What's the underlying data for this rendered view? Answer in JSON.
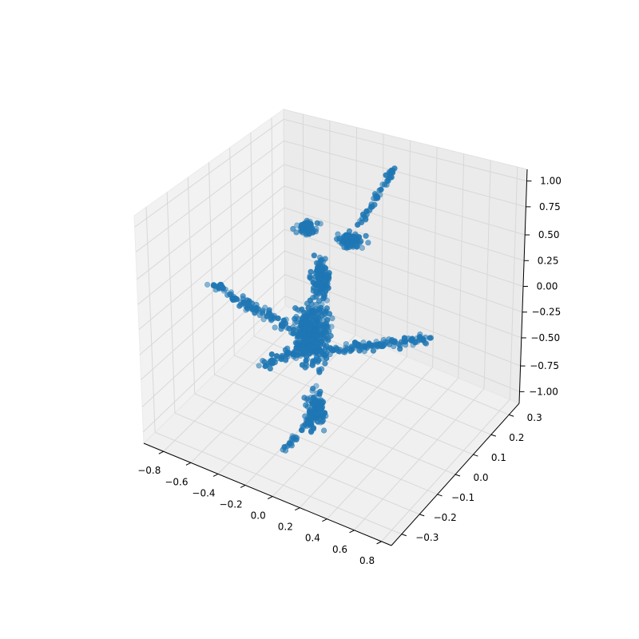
{
  "chart_data": {
    "type": "scatter",
    "projection": "3d",
    "title": "",
    "xlabel": "",
    "ylabel": "",
    "zlabel": "",
    "xlim": [
      -0.9,
      0.85
    ],
    "ylim": [
      -0.34,
      0.34
    ],
    "zlim": [
      -1.08,
      1.08
    ],
    "x_ticks": [
      "−0.8",
      "−0.6",
      "−0.4",
      "−0.2",
      "0.0",
      "0.2",
      "0.4",
      "0.6",
      "0.8"
    ],
    "y_ticks": [
      "−0.3",
      "−0.2",
      "−0.1",
      "0.0",
      "0.1",
      "0.2",
      "0.3"
    ],
    "z_ticks": [
      "−1.00",
      "−0.75",
      "−0.50",
      "−0.25",
      "0.00",
      "0.25",
      "0.50",
      "0.75",
      "1.00"
    ],
    "grid": true,
    "marker_color": "#1f77b4",
    "series": [
      {
        "point_count": 900,
        "structure": "figure-like point cloud with torso, head, two arms and two legs",
        "clusters": [
          {
            "part": "torso",
            "x": [
              -0.05,
              0.2
            ],
            "y": [
              -0.05,
              0.05
            ],
            "z": [
              -0.7,
              0.3
            ],
            "count": 320
          },
          {
            "part": "head",
            "x": [
              -0.1,
              0.25
            ],
            "y": [
              -0.05,
              0.05
            ],
            "z": [
              0.35,
              0.8
            ],
            "count": 150
          },
          {
            "part": "left_arm",
            "x": [
              -0.8,
              -0.05
            ],
            "y": [
              -0.05,
              0.05
            ],
            "z": [
              -0.5,
              -0.1
            ],
            "count": 120
          },
          {
            "part": "right_arm",
            "x": [
              0.2,
              0.72
            ],
            "y": [
              -0.05,
              0.05
            ],
            "z": [
              -0.55,
              -0.4
            ],
            "count": 110
          },
          {
            "part": "left_leg",
            "x": [
              -0.25,
              0.05
            ],
            "y": [
              -0.05,
              0.05
            ],
            "z": [
              -1.0,
              -0.65
            ],
            "count": 100
          },
          {
            "part": "right_leg",
            "x": [
              0.15,
              0.65
            ],
            "y": [
              -0.05,
              0.05
            ],
            "z": [
              0.5,
              1.0
            ],
            "count": 100
          }
        ]
      }
    ]
  }
}
